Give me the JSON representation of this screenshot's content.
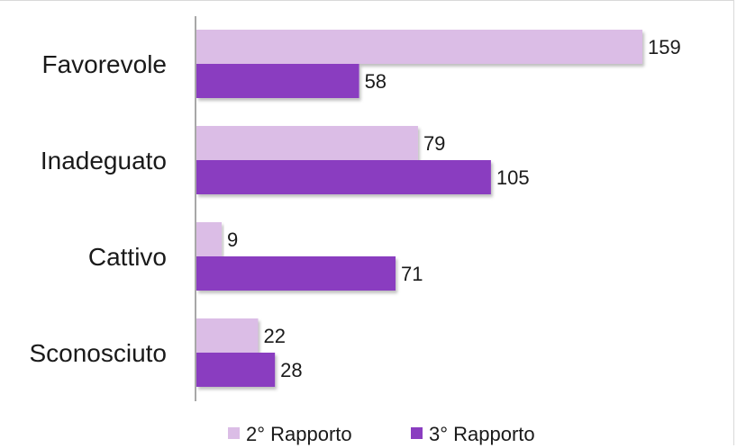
{
  "chart_data": {
    "type": "bar",
    "orientation": "horizontal",
    "categories": [
      "Favorevole",
      "Inadeguato",
      "Cattivo",
      "Sconosciuto"
    ],
    "series": [
      {
        "name": "2° Rapporto",
        "values": [
          159,
          79,
          9,
          22
        ],
        "color": "#dbbde6"
      },
      {
        "name": "3° Rapporto",
        "values": [
          58,
          105,
          71,
          28
        ],
        "color": "#8a3dc0"
      }
    ],
    "xlim": [
      0,
      190
    ],
    "grid": false,
    "legend": "bottom",
    "title": "",
    "xlabel": "",
    "ylabel": ""
  }
}
